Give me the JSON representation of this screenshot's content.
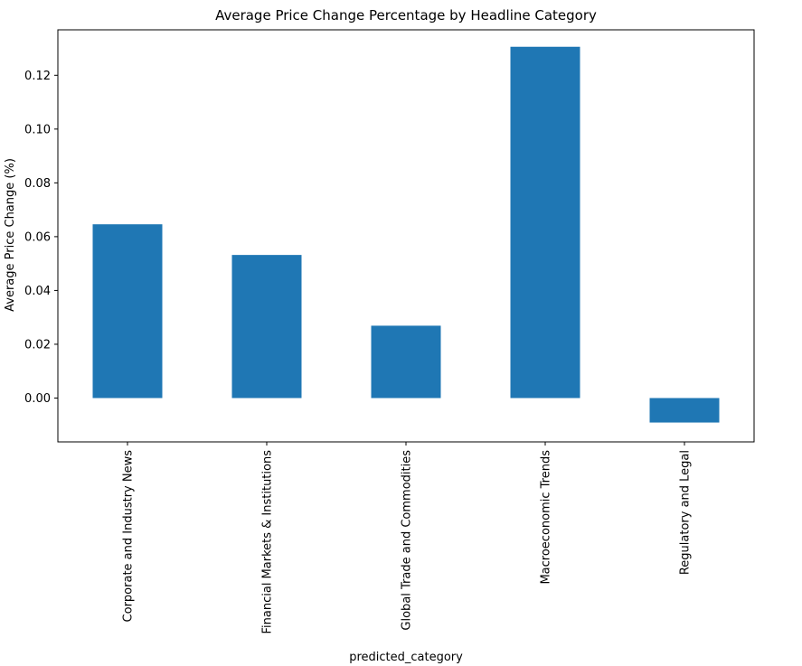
{
  "chart_data": {
    "type": "bar",
    "title": "Average Price Change Percentage by Headline Category",
    "xlabel": "predicted_category",
    "ylabel": "Average Price Change (%)",
    "categories": [
      "Corporate and Industry News",
      "Financial Markets & Institutions",
      "Global Trade and Commodities",
      "Macroeconomic Trends",
      "Regulatory and Legal"
    ],
    "values": [
      0.0646,
      0.0532,
      0.0269,
      0.1306,
      -0.0091
    ],
    "ylim": [
      -0.0163,
      0.1369
    ],
    "yticks": [
      0.0,
      0.02,
      0.04,
      0.06,
      0.08,
      0.1,
      0.12
    ],
    "ytick_labels": [
      "0.00",
      "0.02",
      "0.04",
      "0.06",
      "0.08",
      "0.10",
      "0.12"
    ],
    "grid": false,
    "legend": "none",
    "bar_color": "#1f77b4"
  }
}
